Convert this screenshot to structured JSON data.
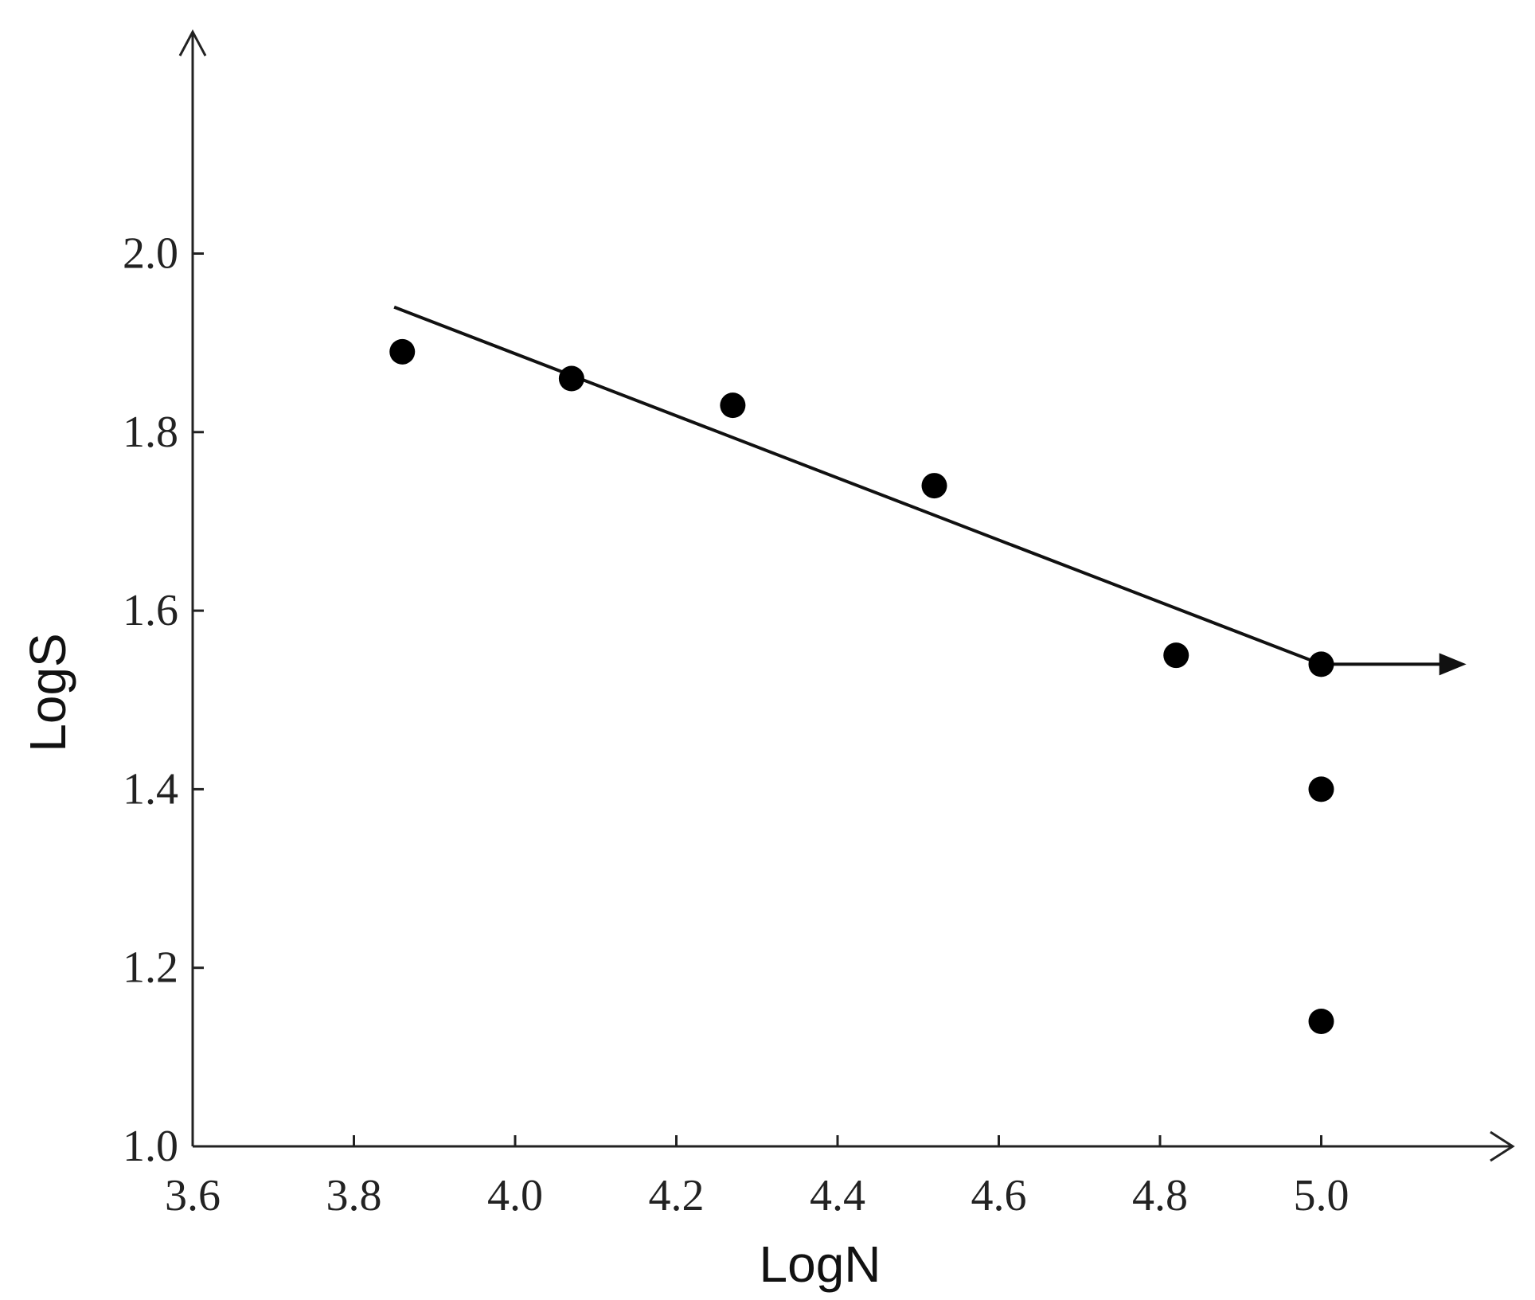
{
  "chart_data": {
    "type": "scatter",
    "xlabel": "LogN",
    "ylabel": "LogS",
    "xlim": [
      3.6,
      5.2
    ],
    "ylim": [
      1.0,
      2.2
    ],
    "xticks": [
      3.6,
      3.8,
      4.0,
      4.2,
      4.4,
      4.6,
      4.8,
      5.0
    ],
    "xtick_labels": [
      "3.6",
      "3.8",
      "4.0",
      "4.2",
      "4.4",
      "4.6",
      "4.8",
      "5.0"
    ],
    "yticks": [
      1.0,
      1.2,
      1.4,
      1.6,
      1.8,
      2.0
    ],
    "ytick_labels": [
      "1.0",
      "1.2",
      "1.4",
      "1.6",
      "1.8",
      "2.0"
    ],
    "grid": false,
    "points": [
      {
        "x": 3.86,
        "y": 1.89
      },
      {
        "x": 4.07,
        "y": 1.86
      },
      {
        "x": 4.27,
        "y": 1.83
      },
      {
        "x": 4.52,
        "y": 1.74
      },
      {
        "x": 4.82,
        "y": 1.55
      },
      {
        "x": 5.0,
        "y": 1.54
      },
      {
        "x": 5.0,
        "y": 1.4
      },
      {
        "x": 5.0,
        "y": 1.14
      }
    ],
    "trend_line": {
      "x": [
        3.85,
        5.0
      ],
      "y": [
        1.94,
        1.54
      ]
    },
    "runout_arrow": {
      "x": [
        5.0,
        5.18
      ],
      "y": [
        1.54,
        1.54
      ]
    }
  }
}
